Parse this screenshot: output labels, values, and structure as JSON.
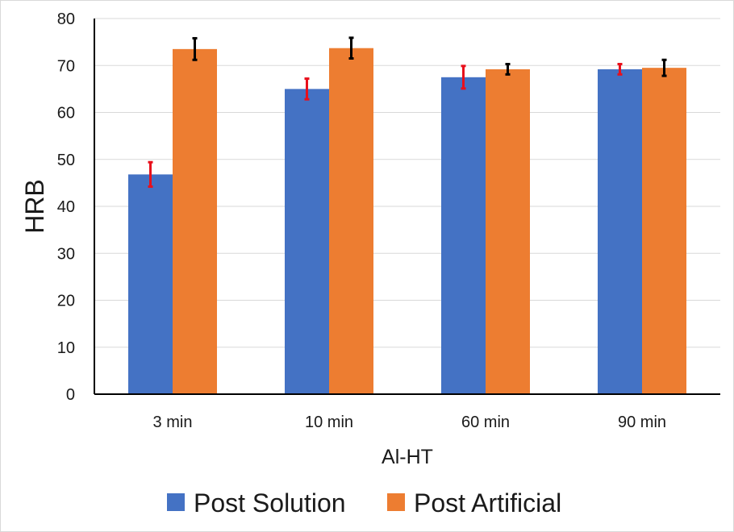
{
  "chart_data": {
    "type": "bar",
    "title": "",
    "xlabel": "Al-HT",
    "ylabel": "HRB",
    "ylim": [
      0,
      80
    ],
    "yticks": [
      0,
      10,
      20,
      30,
      40,
      50,
      60,
      70,
      80
    ],
    "grid": true,
    "legend_position": "bottom",
    "categories": [
      "3 min",
      "10 min",
      "60 min",
      "90 min"
    ],
    "series": [
      {
        "name": "Post Solution",
        "color": "#4472c4",
        "error_color": "#e8101c",
        "values": [
          46.8,
          65.0,
          67.5,
          69.2
        ],
        "errors": [
          2.6,
          2.2,
          2.4,
          1.1
        ]
      },
      {
        "name": "Post Artificial",
        "color": "#ed7d31",
        "error_color": "#000000",
        "values": [
          73.5,
          73.7,
          69.2,
          69.5
        ],
        "errors": [
          2.3,
          2.2,
          1.1,
          1.7
        ]
      }
    ]
  }
}
